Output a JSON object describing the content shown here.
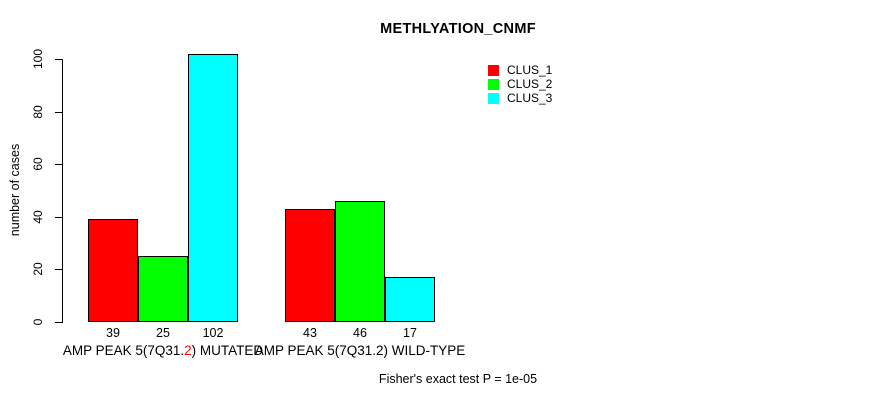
{
  "chart_data": {
    "type": "bar",
    "title": "METHLYATION_CNMF",
    "ylabel": "number of cases",
    "xlabel": "",
    "ylim": [
      0,
      102
    ],
    "yticks": [
      0,
      20,
      40,
      60,
      80,
      100
    ],
    "grid": false,
    "legend_position": "top-right-inside",
    "categories": [
      "AMP PEAK 5(7Q31.2) MUTATED",
      "AMP PEAK 5(7Q31.2) WILD-TYPE"
    ],
    "series": [
      {
        "name": "CLUS_1",
        "color": "#ff0000",
        "values": [
          39,
          43
        ]
      },
      {
        "name": "CLUS_2",
        "color": "#00ff00",
        "values": [
          25,
          46
        ]
      },
      {
        "name": "CLUS_3",
        "color": "#00ffff",
        "values": [
          102,
          17
        ]
      }
    ],
    "bar_value_labels": [
      [
        39,
        25,
        102
      ],
      [
        43,
        46,
        17
      ]
    ],
    "annotation": "Fisher's exact test P = 1e-05"
  },
  "x_axis_labels": [
    {
      "parts": [
        {
          "text": "AMP PEAK 5(7Q31.",
          "color": "#000000"
        },
        {
          "text": "2",
          "color": "#ff0000"
        },
        {
          "text": ") MUTATED",
          "color": "#000000"
        }
      ]
    },
    {
      "parts": [
        {
          "text": "AMP PEAK 5(7Q31.2) WILD-TYPE",
          "color": "#000000"
        }
      ]
    }
  ],
  "colors": {
    "background": "#ffffff",
    "axis": "#000000",
    "bar_border": "#000000",
    "text": "#000000",
    "highlight": "#ff0000"
  }
}
